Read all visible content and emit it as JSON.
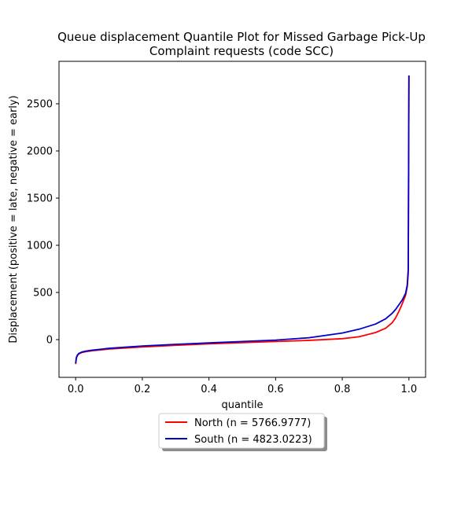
{
  "chart_data": {
    "type": "line",
    "title": "Queue displacement Quantile Plot for Missed Garbage Pick-Up",
    "subtitle": "Complaint  requests (code SCC)",
    "xlabel": "quantile",
    "ylabel": "Displacement (positive = late, negative = early)",
    "xlim": [
      -0.05,
      1.05
    ],
    "ylim": [
      -400,
      2950
    ],
    "xticks": [
      0.0,
      0.2,
      0.4,
      0.6,
      0.8,
      1.0
    ],
    "xtick_labels": [
      "0.0",
      "0.2",
      "0.4",
      "0.6",
      "0.8",
      "1.0"
    ],
    "yticks": [
      0,
      500,
      1000,
      1500,
      2000,
      2500
    ],
    "ytick_labels": [
      "0",
      "500",
      "1000",
      "1500",
      "2000",
      "2500"
    ],
    "grid": false,
    "legend_position": "bottom-center",
    "series": [
      {
        "name": "North (n = 5766.9777)",
        "color": "#ff0000",
        "x": [
          0.0,
          0.002,
          0.005,
          0.01,
          0.02,
          0.03,
          0.05,
          0.1,
          0.2,
          0.3,
          0.4,
          0.5,
          0.6,
          0.7,
          0.8,
          0.85,
          0.9,
          0.93,
          0.95,
          0.96,
          0.97,
          0.98,
          0.99,
          0.995,
          0.998,
          1.0
        ],
        "values": [
          -260,
          -200,
          -170,
          -150,
          -135,
          -128,
          -118,
          -100,
          -78,
          -60,
          -45,
          -32,
          -20,
          -8,
          10,
          30,
          75,
          120,
          180,
          230,
          300,
          380,
          470,
          560,
          700,
          2800
        ]
      },
      {
        "name": "South (n = 4823.0223)",
        "color": "#0000cc",
        "x": [
          0.0,
          0.002,
          0.005,
          0.01,
          0.02,
          0.03,
          0.05,
          0.1,
          0.2,
          0.3,
          0.4,
          0.5,
          0.6,
          0.7,
          0.8,
          0.85,
          0.9,
          0.93,
          0.95,
          0.96,
          0.97,
          0.98,
          0.99,
          0.995,
          0.998,
          1.0
        ],
        "values": [
          -250,
          -190,
          -165,
          -145,
          -130,
          -122,
          -112,
          -92,
          -68,
          -50,
          -35,
          -20,
          -5,
          20,
          70,
          110,
          165,
          220,
          280,
          320,
          370,
          420,
          490,
          580,
          750,
          2800
        ]
      }
    ]
  }
}
